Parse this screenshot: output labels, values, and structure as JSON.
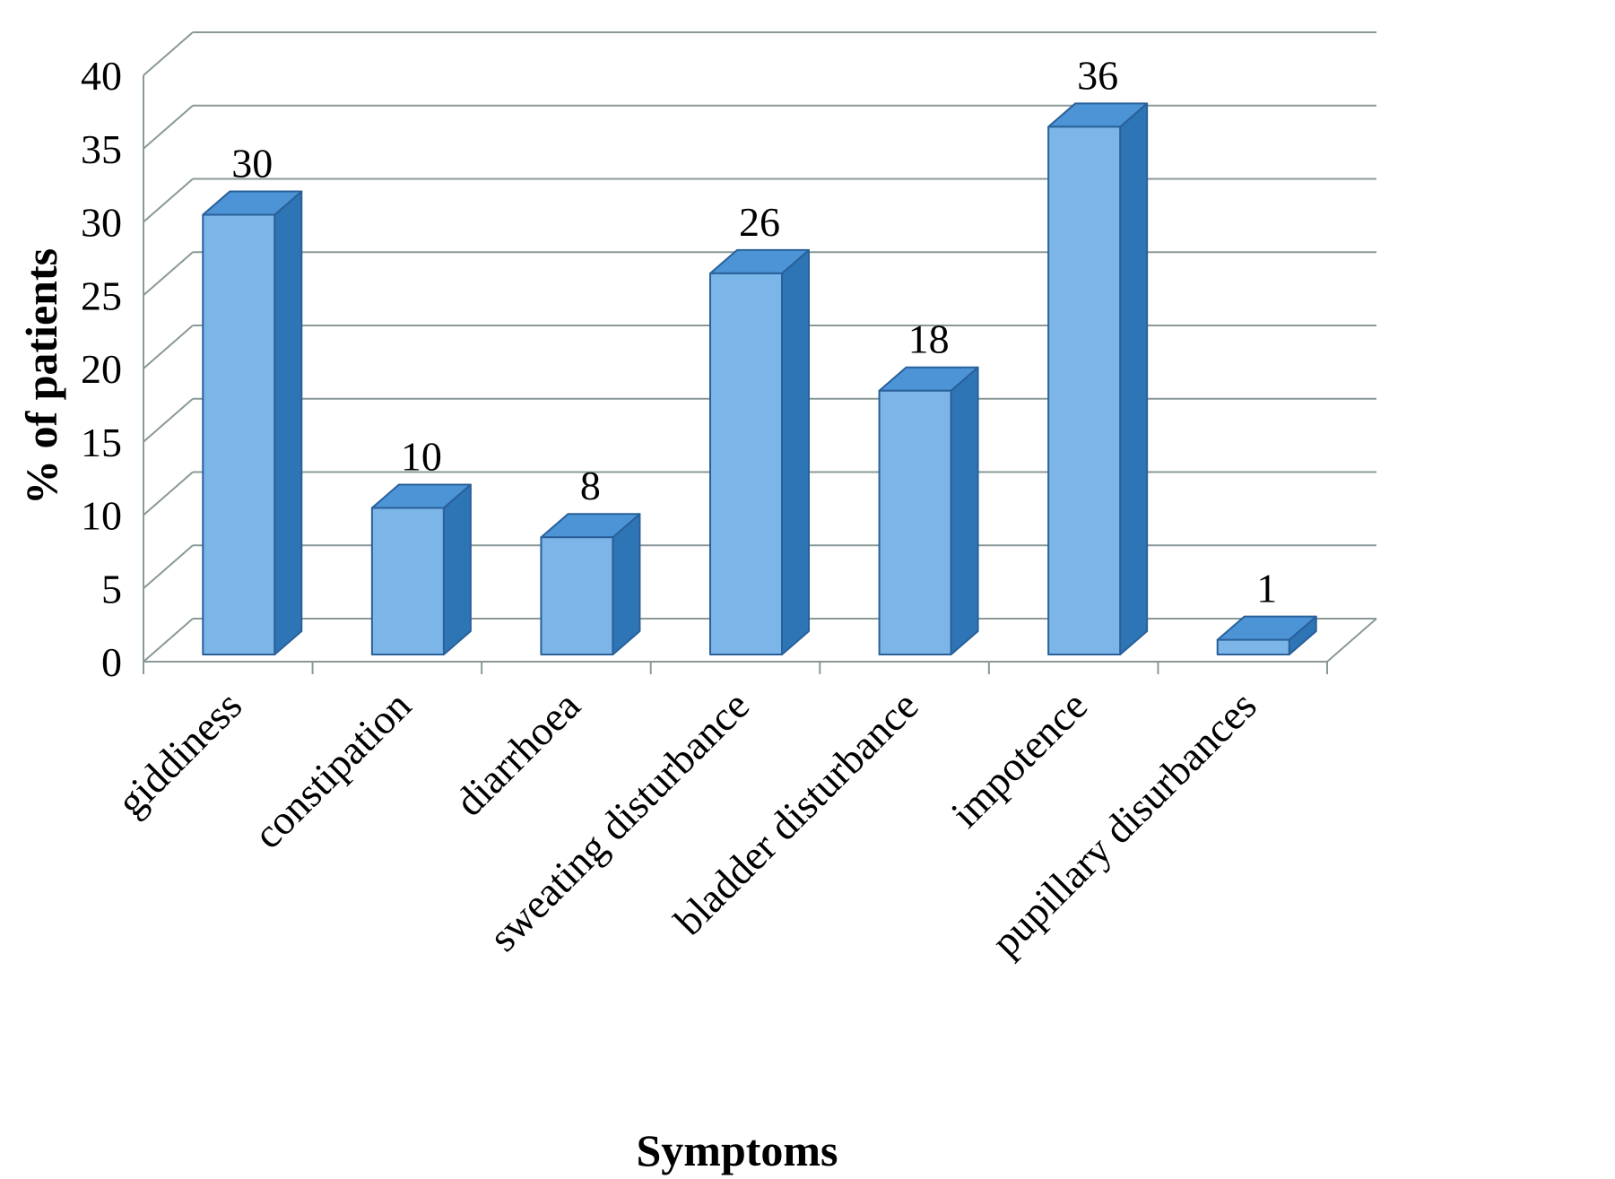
{
  "chart_data": {
    "type": "bar",
    "style": "3d",
    "title": "",
    "xlabel": "Symptoms",
    "ylabel": "% of patients",
    "categories": [
      "giddiness",
      "constipation",
      "diarrhoea",
      "sweating disturbance",
      "bladder disturbance",
      "impotence",
      "pupillary disurbances"
    ],
    "values": [
      30,
      10,
      8,
      26,
      18,
      36,
      1
    ],
    "ylim": [
      0,
      40
    ],
    "ytick_step": 5,
    "grid": true,
    "legend": "none",
    "colors": {
      "bar_front": "#7CB5E8",
      "bar_top": "#4C94D6",
      "bar_side": "#2E75B6",
      "bar_stroke": "#2A6099",
      "grid": "#8A9898",
      "axis": "#8A9898",
      "label": "#000000",
      "background": "#FFFFFF"
    }
  }
}
